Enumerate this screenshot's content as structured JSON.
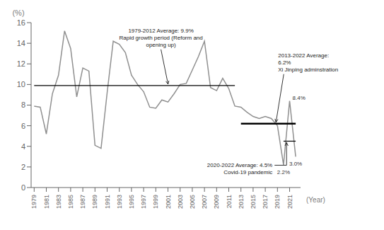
{
  "chart_data": {
    "type": "line",
    "x": [
      1979,
      1980,
      1981,
      1982,
      1983,
      1984,
      1985,
      1986,
      1987,
      1988,
      1989,
      1990,
      1991,
      1992,
      1993,
      1994,
      1995,
      1996,
      1997,
      1998,
      1999,
      2000,
      2001,
      2002,
      2003,
      2004,
      2005,
      2006,
      2007,
      2008,
      2009,
      2010,
      2011,
      2012,
      2013,
      2014,
      2015,
      2016,
      2017,
      2018,
      2019,
      2020,
      2021,
      2022
    ],
    "values": [
      7.9,
      7.8,
      5.2,
      9.1,
      10.9,
      15.2,
      13.5,
      8.8,
      11.6,
      11.3,
      4.1,
      3.8,
      9.2,
      14.2,
      13.9,
      13.1,
      10.9,
      10.0,
      9.3,
      7.8,
      7.7,
      8.5,
      8.3,
      9.1,
      10.0,
      10.1,
      11.4,
      12.7,
      14.2,
      9.7,
      9.4,
      10.6,
      9.6,
      7.9,
      7.8,
      7.3,
      6.9,
      6.7,
      6.9,
      6.7,
      6.0,
      2.2,
      8.4,
      3.0
    ],
    "value_labels": [
      null,
      null,
      null,
      null,
      null,
      null,
      null,
      null,
      null,
      null,
      null,
      null,
      null,
      null,
      null,
      null,
      null,
      null,
      null,
      null,
      null,
      null,
      null,
      null,
      null,
      null,
      null,
      null,
      null,
      null,
      null,
      null,
      null,
      null,
      null,
      null,
      null,
      null,
      null,
      null,
      null,
      "2.2%",
      "8.4%",
      "3.0%"
    ],
    "color": "#909090",
    "x_label": "(Year)",
    "y_label": "(%)",
    "xlim": [
      1978.5,
      2022.8
    ],
    "xticks": [
      1979,
      1981,
      1983,
      1985,
      1987,
      1989,
      1991,
      1993,
      1995,
      1997,
      1999,
      2001,
      2003,
      2005,
      2007,
      2009,
      2011,
      2013,
      2015,
      2017,
      2019,
      2021
    ],
    "ylim": [
      0,
      16
    ],
    "yticks": [
      0,
      2,
      4,
      6,
      8,
      10,
      12,
      14,
      16
    ],
    "grid": false,
    "averages": [
      {
        "start": 1979,
        "end": 2012,
        "value": 9.9,
        "color": "black",
        "label": "1979-2012 Average: 9.9%\nRapid growth period (Reform and\nopening up)"
      },
      {
        "start": 2013,
        "end": 2022,
        "value": 6.2,
        "color": "black",
        "label": "2013-2022 Average:\n6.2%\nXi Jinping adminstration"
      },
      {
        "start": 2020,
        "end": 2022,
        "value": 4.5,
        "color": "black",
        "label": "2020-2022 Average: 4.5%\nCovid-19 pandemic"
      }
    ]
  }
}
